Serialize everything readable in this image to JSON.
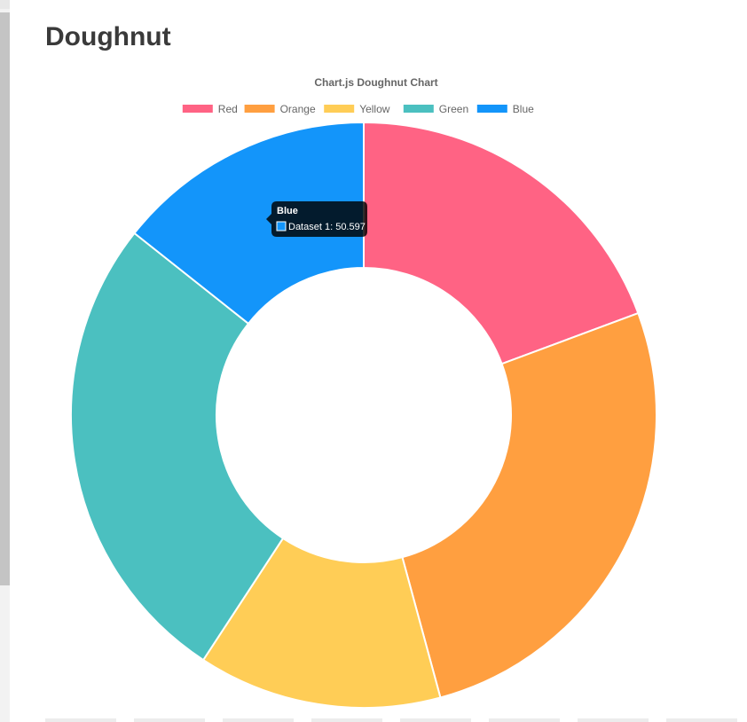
{
  "page": {
    "heading": "Doughnut"
  },
  "chart_data": {
    "type": "pie",
    "title": "Chart.js Doughnut Chart",
    "legend_position": "top",
    "categories": [
      "Red",
      "Orange",
      "Yellow",
      "Green",
      "Blue"
    ],
    "series": [
      {
        "name": "Dataset 1",
        "values": [
          68.3,
          93.4,
          47.5,
          93.4,
          50.597
        ]
      }
    ],
    "colors": [
      "#ff6384",
      "#ff9f40",
      "#ffcd56",
      "#4bc0c0",
      "#1395fa"
    ],
    "tooltip": {
      "title": "Blue",
      "label": "Dataset 1: 50.597"
    }
  }
}
